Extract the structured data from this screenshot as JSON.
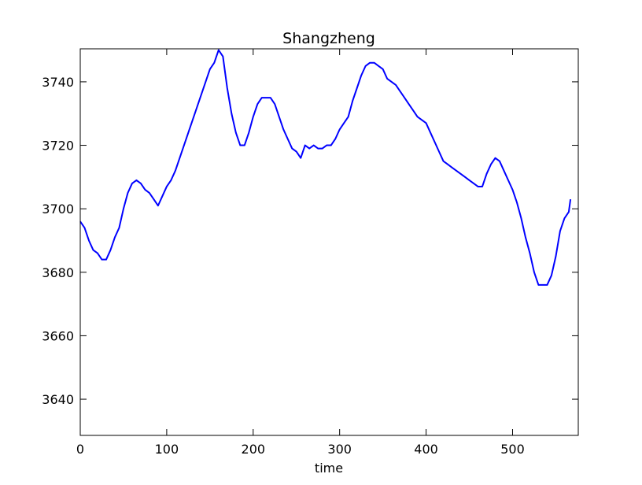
{
  "chart_data": {
    "type": "line",
    "title": "Shangzheng",
    "x_label": "time",
    "series": [
      {
        "name": "Shangzheng",
        "color": "#0000ff",
        "x": [
          0,
          5,
          10,
          15,
          20,
          25,
          30,
          35,
          40,
          45,
          50,
          55,
          60,
          65,
          70,
          75,
          80,
          85,
          90,
          95,
          100,
          105,
          110,
          115,
          120,
          125,
          130,
          135,
          140,
          145,
          150,
          155,
          160,
          165,
          170,
          175,
          180,
          185,
          190,
          195,
          200,
          205,
          210,
          215,
          220,
          225,
          230,
          235,
          240,
          245,
          250,
          255,
          260,
          265,
          270,
          275,
          280,
          285,
          290,
          295,
          300,
          305,
          310,
          315,
          320,
          325,
          330,
          335,
          340,
          345,
          350,
          355,
          360,
          365,
          370,
          375,
          380,
          385,
          390,
          395,
          400,
          405,
          410,
          415,
          420,
          425,
          430,
          435,
          440,
          445,
          450,
          455,
          460,
          465,
          470,
          475,
          480,
          485,
          490,
          495,
          500,
          505,
          510,
          515,
          520,
          525,
          530,
          535,
          540,
          545,
          550,
          555,
          560,
          565,
          567
        ],
        "values": [
          3696,
          3694,
          3690,
          3687,
          3686,
          3684,
          3684,
          3687,
          3691,
          3694,
          3700,
          3705,
          3708,
          3709,
          3708,
          3706,
          3705,
          3703,
          3701,
          3704,
          3707,
          3709,
          3712,
          3716,
          3720,
          3724,
          3728,
          3732,
          3736,
          3740,
          3744,
          3746,
          3750,
          3748,
          3738,
          3730,
          3724,
          3720,
          3720,
          3724,
          3729,
          3733,
          3735,
          3735,
          3735,
          3733,
          3729,
          3725,
          3722,
          3719,
          3718,
          3716,
          3720,
          3719,
          3720,
          3719,
          3719,
          3720,
          3720,
          3722,
          3725,
          3727,
          3729,
          3734,
          3738,
          3742,
          3745,
          3746,
          3746,
          3745,
          3744,
          3741,
          3740,
          3739,
          3737,
          3735,
          3733,
          3731,
          3729,
          3728,
          3727,
          3724,
          3721,
          3718,
          3715,
          3714,
          3713,
          3712,
          3711,
          3710,
          3709,
          3708,
          3707,
          3707,
          3711,
          3714,
          3716,
          3715,
          3712,
          3709,
          3706,
          3702,
          3697,
          3691,
          3686,
          3680,
          3676,
          3676,
          3676,
          3679,
          3685,
          3693,
          3697,
          3699,
          3703
        ]
      }
    ],
    "xlim": [
      0,
      576
    ],
    "ylim": [
      3628.6,
      3750.4
    ],
    "xticks": [
      0,
      100,
      200,
      300,
      400,
      500
    ],
    "yticks": [
      3640,
      3660,
      3680,
      3700,
      3720,
      3740
    ]
  }
}
